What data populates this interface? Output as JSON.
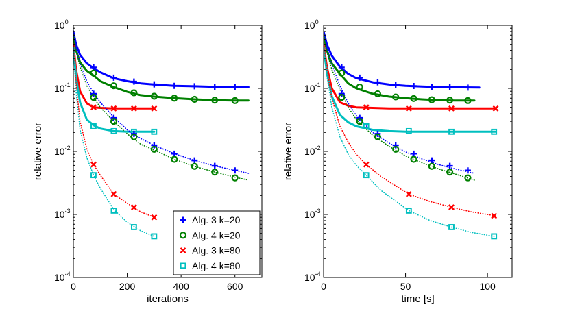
{
  "chart_data": [
    {
      "type": "line",
      "title": "",
      "xlabel": "iterations",
      "ylabel": "relative error",
      "yscale": "log",
      "xlim": [
        0,
        700
      ],
      "ylim": [
        0.0001,
        1
      ],
      "xticks": [
        0,
        200,
        400,
        600
      ],
      "xtick_labels": [
        "0",
        "200",
        "400",
        "600"
      ],
      "grid": false,
      "legend": {
        "placement": "bottom-right",
        "entries": [
          "Alg. 3 k=20",
          "Alg. 4 k=20",
          "Alg. 3 k=80",
          "Alg. 4 k=80"
        ]
      },
      "series": [
        {
          "name": "Alg. 3 k=20",
          "line": "solid",
          "color": "#0000ff",
          "marker": "plus",
          "x": [
            0,
            10,
            25,
            50,
            75,
            100,
            150,
            200,
            250,
            300,
            375,
            450,
            525,
            600,
            650
          ],
          "y": [
            0.8,
            0.5,
            0.34,
            0.25,
            0.21,
            0.18,
            0.145,
            0.13,
            0.12,
            0.115,
            0.11,
            0.108,
            0.106,
            0.105,
            0.105
          ],
          "markers_x": [
            75,
            150,
            225,
            300,
            375,
            450,
            525,
            600
          ],
          "markers_y": [
            0.215,
            0.148,
            0.128,
            0.116,
            0.11,
            0.108,
            0.106,
            0.105
          ]
        },
        {
          "name": "Alg. 4 k=20",
          "line": "solid",
          "color": "#008000",
          "marker": "circle",
          "x": [
            0,
            10,
            25,
            50,
            75,
            100,
            150,
            200,
            250,
            300,
            375,
            450,
            525,
            600,
            650
          ],
          "y": [
            0.7,
            0.4,
            0.26,
            0.19,
            0.16,
            0.13,
            0.105,
            0.088,
            0.078,
            0.074,
            0.07,
            0.067,
            0.065,
            0.064,
            0.064
          ],
          "markers_x": [
            75,
            150,
            225,
            300,
            375,
            450,
            525,
            600
          ],
          "markers_y": [
            0.175,
            0.11,
            0.085,
            0.075,
            0.07,
            0.067,
            0.065,
            0.064
          ]
        },
        {
          "name": "Alg. 3 k=80",
          "line": "solid",
          "color": "#ff0000",
          "marker": "x",
          "x": [
            0,
            10,
            25,
            50,
            75,
            100,
            150,
            200,
            250,
            300
          ],
          "y": [
            0.5,
            0.2,
            0.09,
            0.058,
            0.05,
            0.049,
            0.048,
            0.048,
            0.048,
            0.048
          ],
          "markers_x": [
            75,
            150,
            225,
            300
          ],
          "markers_y": [
            0.05,
            0.048,
            0.048,
            0.048
          ]
        },
        {
          "name": "Alg. 4 k=80",
          "line": "solid",
          "color": "#00bfbf",
          "marker": "square",
          "x": [
            0,
            10,
            25,
            50,
            75,
            100,
            150,
            200,
            250,
            300
          ],
          "y": [
            0.45,
            0.15,
            0.06,
            0.032,
            0.026,
            0.023,
            0.021,
            0.0205,
            0.0205,
            0.0205
          ],
          "markers_x": [
            75,
            150,
            225,
            300
          ],
          "markers_y": [
            0.025,
            0.021,
            0.0205,
            0.0205
          ]
        },
        {
          "name": "Alg. 3 k=20 (dotted)",
          "line": "dotted",
          "color": "#0000ff",
          "marker": "plus",
          "in_legend": false,
          "x": [
            0,
            10,
            25,
            50,
            75,
            100,
            150,
            200,
            250,
            300,
            375,
            450,
            525,
            600,
            650
          ],
          "y": [
            0.8,
            0.45,
            0.25,
            0.13,
            0.085,
            0.06,
            0.035,
            0.022,
            0.016,
            0.0125,
            0.0092,
            0.0072,
            0.0059,
            0.005,
            0.0045
          ],
          "markers_x": [
            75,
            150,
            225,
            300,
            375,
            450,
            525,
            600
          ],
          "markers_y": [
            0.082,
            0.034,
            0.019,
            0.0125,
            0.0092,
            0.0072,
            0.0059,
            0.005
          ]
        },
        {
          "name": "Alg. 4 k=20 (dotted)",
          "line": "dotted",
          "color": "#008000",
          "marker": "circle",
          "in_legend": false,
          "x": [
            0,
            10,
            25,
            50,
            75,
            100,
            150,
            200,
            250,
            300,
            375,
            450,
            525,
            600,
            650
          ],
          "y": [
            0.7,
            0.4,
            0.22,
            0.11,
            0.072,
            0.05,
            0.03,
            0.019,
            0.013,
            0.0105,
            0.0075,
            0.0058,
            0.0047,
            0.0039,
            0.0035
          ],
          "markers_x": [
            75,
            150,
            225,
            300,
            375,
            450,
            525,
            600
          ],
          "markers_y": [
            0.072,
            0.03,
            0.017,
            0.0108,
            0.0075,
            0.0058,
            0.0047,
            0.0038
          ]
        },
        {
          "name": "Alg. 3 k=80 (dotted)",
          "line": "dotted",
          "color": "#ff0000",
          "marker": "x",
          "in_legend": false,
          "x": [
            0,
            10,
            25,
            50,
            75,
            100,
            150,
            200,
            250,
            300
          ],
          "y": [
            0.5,
            0.12,
            0.03,
            0.011,
            0.0062,
            0.0042,
            0.0021,
            0.0015,
            0.0011,
            0.0009
          ],
          "markers_x": [
            75,
            150,
            225,
            300
          ],
          "markers_y": [
            0.0062,
            0.0021,
            0.0013,
            0.0009
          ]
        },
        {
          "name": "Alg. 4 k=80 (dotted)",
          "line": "dotted",
          "color": "#00bfbf",
          "marker": "square",
          "in_legend": false,
          "x": [
            0,
            10,
            25,
            50,
            75,
            100,
            150,
            200,
            250,
            300
          ],
          "y": [
            0.45,
            0.09,
            0.022,
            0.008,
            0.0042,
            0.0026,
            0.0012,
            0.00075,
            0.00055,
            0.00045
          ],
          "markers_x": [
            75,
            150,
            225,
            300
          ],
          "markers_y": [
            0.0042,
            0.00115,
            0.00063,
            0.00045
          ]
        }
      ]
    },
    {
      "type": "line",
      "title": "",
      "xlabel": "time [s]",
      "ylabel": "relative error",
      "yscale": "log",
      "xlim": [
        0,
        115
      ],
      "ylim": [
        0.0001,
        1
      ],
      "xticks": [
        0,
        50,
        100
      ],
      "xtick_labels": [
        "0",
        "50",
        "100"
      ],
      "grid": false,
      "series": [
        {
          "name": "Alg. 3 k=20",
          "line": "solid",
          "color": "#0000ff",
          "marker": "plus",
          "x": [
            0,
            2,
            5,
            10,
            15,
            20,
            30,
            40,
            50,
            60,
            70,
            80,
            95
          ],
          "y": [
            0.8,
            0.5,
            0.33,
            0.22,
            0.17,
            0.145,
            0.125,
            0.115,
            0.11,
            0.107,
            0.105,
            0.104,
            0.103
          ],
          "markers_x": [
            11,
            22,
            33,
            44,
            55,
            66,
            77,
            88
          ],
          "markers_y": [
            0.215,
            0.148,
            0.125,
            0.114,
            0.109,
            0.106,
            0.104,
            0.103
          ]
        },
        {
          "name": "Alg. 4 k=20",
          "line": "solid",
          "color": "#008000",
          "marker": "circle",
          "x": [
            0,
            2,
            5,
            10,
            15,
            20,
            30,
            40,
            50,
            60,
            70,
            80,
            92
          ],
          "y": [
            0.7,
            0.4,
            0.25,
            0.17,
            0.12,
            0.1,
            0.082,
            0.074,
            0.07,
            0.067,
            0.065,
            0.064,
            0.064
          ],
          "markers_x": [
            11,
            22,
            33,
            44,
            55,
            66,
            77,
            88
          ],
          "markers_y": [
            0.175,
            0.105,
            0.082,
            0.073,
            0.069,
            0.066,
            0.065,
            0.064
          ]
        },
        {
          "name": "Alg. 3 k=80",
          "line": "solid",
          "color": "#ff0000",
          "marker": "x",
          "x": [
            0,
            2,
            5,
            10,
            15,
            20,
            30,
            40,
            50,
            60,
            80,
            105
          ],
          "y": [
            0.5,
            0.22,
            0.1,
            0.06,
            0.053,
            0.05,
            0.049,
            0.048,
            0.048,
            0.048,
            0.048,
            0.048
          ],
          "markers_x": [
            26,
            52,
            78,
            105
          ],
          "markers_y": [
            0.05,
            0.048,
            0.048,
            0.048
          ]
        },
        {
          "name": "Alg. 4 k=80",
          "line": "solid",
          "color": "#00bfbf",
          "marker": "square",
          "x": [
            0,
            2,
            5,
            10,
            15,
            20,
            30,
            40,
            50,
            60,
            80,
            105
          ],
          "y": [
            0.45,
            0.18,
            0.075,
            0.038,
            0.029,
            0.025,
            0.022,
            0.021,
            0.0205,
            0.0205,
            0.0205,
            0.0205
          ],
          "markers_x": [
            26,
            52,
            78,
            104
          ],
          "markers_y": [
            0.025,
            0.021,
            0.0205,
            0.0205
          ]
        },
        {
          "name": "Alg. 3 k=20 (dotted)",
          "line": "dotted",
          "color": "#0000ff",
          "marker": "plus",
          "in_legend": false,
          "x": [
            0,
            2,
            5,
            10,
            15,
            20,
            30,
            40,
            50,
            60,
            70,
            80,
            92
          ],
          "y": [
            0.8,
            0.45,
            0.24,
            0.11,
            0.058,
            0.037,
            0.02,
            0.0135,
            0.0098,
            0.0076,
            0.0062,
            0.0053,
            0.0045
          ],
          "markers_x": [
            11,
            22,
            33,
            44,
            55,
            66,
            77,
            88
          ],
          "markers_y": [
            0.082,
            0.034,
            0.019,
            0.0125,
            0.0092,
            0.0072,
            0.0059,
            0.005
          ]
        },
        {
          "name": "Alg. 4 k=20 (dotted)",
          "line": "dotted",
          "color": "#008000",
          "marker": "circle",
          "in_legend": false,
          "x": [
            0,
            2,
            5,
            10,
            15,
            20,
            30,
            40,
            50,
            60,
            70,
            80,
            92
          ],
          "y": [
            0.7,
            0.38,
            0.2,
            0.095,
            0.05,
            0.032,
            0.018,
            0.012,
            0.0085,
            0.0066,
            0.0053,
            0.0044,
            0.0035
          ],
          "markers_x": [
            11,
            22,
            33,
            44,
            55,
            66,
            77,
            88
          ],
          "markers_y": [
            0.072,
            0.03,
            0.017,
            0.0108,
            0.0075,
            0.0058,
            0.0047,
            0.0038
          ]
        },
        {
          "name": "Alg. 3 k=80 (dotted)",
          "line": "dotted",
          "color": "#ff0000",
          "marker": "x",
          "in_legend": false,
          "x": [
            0,
            2,
            5,
            10,
            15,
            20,
            26,
            35,
            52,
            65,
            78,
            90,
            105
          ],
          "y": [
            0.5,
            0.2,
            0.07,
            0.025,
            0.014,
            0.009,
            0.0062,
            0.004,
            0.0021,
            0.0016,
            0.0013,
            0.0011,
            0.00095
          ],
          "markers_x": [
            26,
            52,
            78,
            104
          ],
          "markers_y": [
            0.0062,
            0.0021,
            0.0013,
            0.00095
          ]
        },
        {
          "name": "Alg. 4 k=80 (dotted)",
          "line": "dotted",
          "color": "#00bfbf",
          "marker": "square",
          "in_legend": false,
          "x": [
            0,
            2,
            5,
            10,
            15,
            20,
            26,
            35,
            52,
            65,
            78,
            90,
            104
          ],
          "y": [
            0.45,
            0.16,
            0.05,
            0.017,
            0.009,
            0.006,
            0.0042,
            0.0024,
            0.00115,
            0.0008,
            0.00063,
            0.00052,
            0.00045
          ],
          "markers_x": [
            26,
            52,
            78,
            104
          ],
          "markers_y": [
            0.0042,
            0.00115,
            0.00063,
            0.00045
          ]
        }
      ]
    }
  ]
}
